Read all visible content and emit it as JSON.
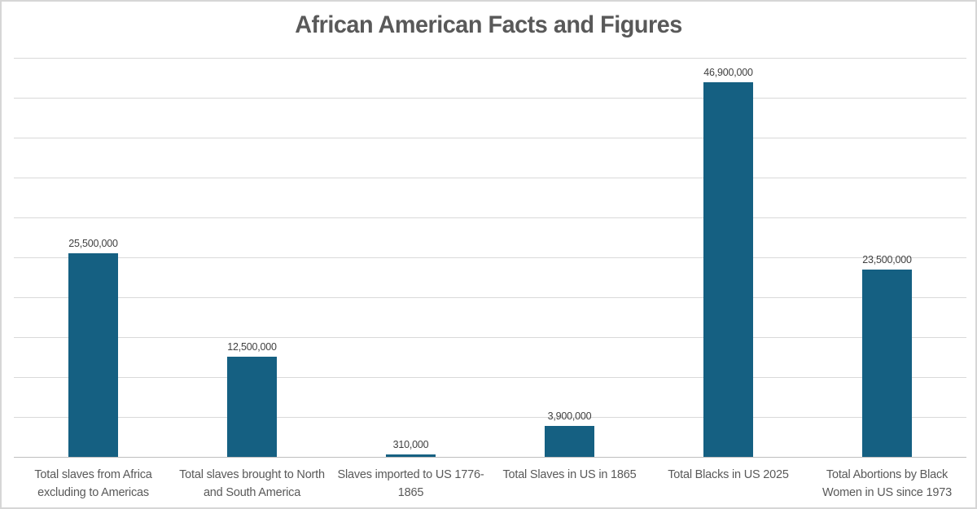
{
  "chart": {
    "title": "African American Facts and Figures"
  },
  "chart_data": {
    "type": "bar",
    "title": "African American Facts and Figures",
    "categories": [
      "Total slaves from Africa excluding to Americas",
      "Total slaves brought to North and South America",
      "Slaves imported to US 1776-1865",
      "Total Slaves in US in 1865",
      "Total Blacks in US 2025",
      "Total Abortions by Black Women in US since 1973"
    ],
    "values": [
      25500000,
      12500000,
      310000,
      3900000,
      46900000,
      23500000
    ],
    "data_labels": [
      "25,500,000",
      "12,500,000",
      "310,000",
      "3,900,000",
      "46,900,000",
      "23,500,000"
    ],
    "xlabel": "",
    "ylabel": "",
    "ylim": [
      0,
      50000000
    ],
    "gridline_interval": 5000000,
    "grid": true,
    "legend": false,
    "y_tick_labels_visible": false,
    "bar_color": "#156082",
    "gridline_color": "#d9d9d9",
    "axis_line_color": "#bfbfbf",
    "title_color": "#595959",
    "label_color": "#404040",
    "category_color": "#595959"
  }
}
